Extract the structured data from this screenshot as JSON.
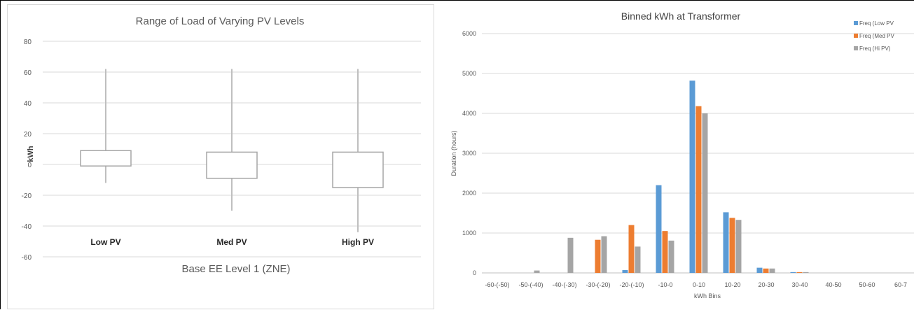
{
  "chart_data": [
    {
      "type": "box",
      "title": "Range of Load of Varying PV Levels",
      "ylabel": "kWh",
      "xlabel": "Base EE Level 1 (ZNE)",
      "ylim": [
        -60,
        80
      ],
      "yticks": [
        80,
        60,
        40,
        20,
        0,
        -20,
        -40,
        -60
      ],
      "grid": true,
      "categories": [
        "Low PV",
        "Med PV",
        "High PV"
      ],
      "boxes": [
        {
          "label": "Low PV",
          "min": -12,
          "q1": -1,
          "q3": 9,
          "max": 62
        },
        {
          "label": "Med PV",
          "min": -30,
          "q1": -9,
          "q3": 8,
          "max": 62
        },
        {
          "label": "High PV",
          "min": -44,
          "q1": -15,
          "q3": 8,
          "max": 62
        }
      ]
    },
    {
      "type": "bar",
      "title": "Binned kWh at Transformer",
      "xlabel": "kWh Bins",
      "ylabel": "Duration (hours)",
      "ylim": [
        0,
        6000
      ],
      "yticks": [
        6000,
        5000,
        4000,
        3000,
        2000,
        1000,
        0
      ],
      "grid": true,
      "legend_position": "top-right",
      "categories": [
        "-60-(-50)",
        "-50-(-40)",
        "-40-(-30)",
        "-30-(-20)",
        "-20-(-10)",
        "-10-0",
        "0-10",
        "10-20",
        "20-30",
        "30-40",
        "40-50",
        "50-60",
        "60-7"
      ],
      "series": [
        {
          "name": "Freq (Low PV",
          "color": "#5b9bd5",
          "values": [
            0,
            0,
            0,
            0,
            70,
            2200,
            4820,
            1520,
            130,
            20,
            0,
            0,
            0
          ]
        },
        {
          "name": "Freq (Med PV",
          "color": "#ed7d31",
          "values": [
            0,
            0,
            0,
            830,
            1200,
            1050,
            4180,
            1380,
            110,
            20,
            0,
            0,
            0
          ]
        },
        {
          "name": "Freq (Hi PV)",
          "color": "#a5a5a5",
          "values": [
            0,
            60,
            880,
            920,
            660,
            810,
            4000,
            1330,
            110,
            20,
            0,
            0,
            0
          ]
        }
      ]
    }
  ]
}
